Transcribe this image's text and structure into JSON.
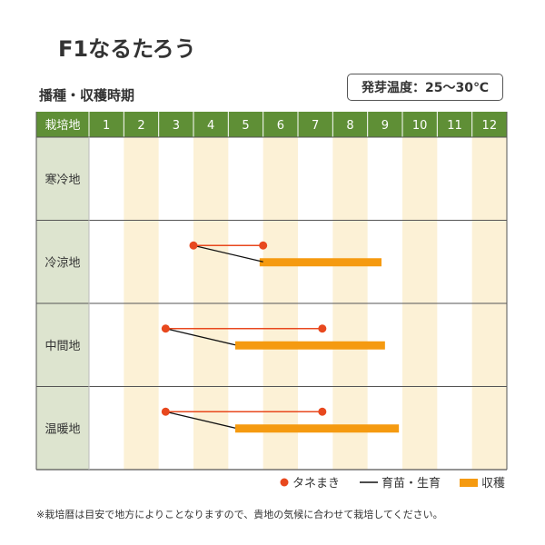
{
  "product_title": "F1なるたろう",
  "section_label": "播種・収穫時期",
  "germination_temp": "発芽温度：25～30℃",
  "footnote": "※栽培暦は目安で地方によりことなりますので、貴地の気候に合わせて栽培してください。",
  "colors": {
    "header_bg": "#5f8f36",
    "region_bg": "#dde4cf",
    "stripe": "#fcf1d6",
    "sowing": "#e8481e",
    "seedling_line": "#111111",
    "harvest": "#f59a10"
  },
  "chart_data": {
    "type": "gantt",
    "header_label": "栽培地",
    "months": [
      "1",
      "2",
      "3",
      "4",
      "5",
      "6",
      "7",
      "8",
      "9",
      "10",
      "11",
      "12"
    ],
    "regions": [
      {
        "name": "寒冷地",
        "sowing": null,
        "seedling_to": null,
        "harvest": null
      },
      {
        "name": "冷涼地",
        "sowing": [
          4.0,
          6.0
        ],
        "seedling_to": 6.0,
        "harvest": [
          5.9,
          9.4
        ]
      },
      {
        "name": "中間地",
        "sowing": [
          3.2,
          7.7
        ],
        "seedling_to": 5.2,
        "harvest": [
          5.2,
          9.5
        ]
      },
      {
        "name": "温暖地",
        "sowing": [
          3.2,
          7.7
        ],
        "seedling_to": 5.2,
        "harvest": [
          5.2,
          9.9
        ]
      }
    ],
    "legend": [
      {
        "key": "sowing",
        "label": "タネまき"
      },
      {
        "key": "seedling",
        "label": "育苗・生育"
      },
      {
        "key": "harvest",
        "label": "収穫"
      }
    ]
  }
}
